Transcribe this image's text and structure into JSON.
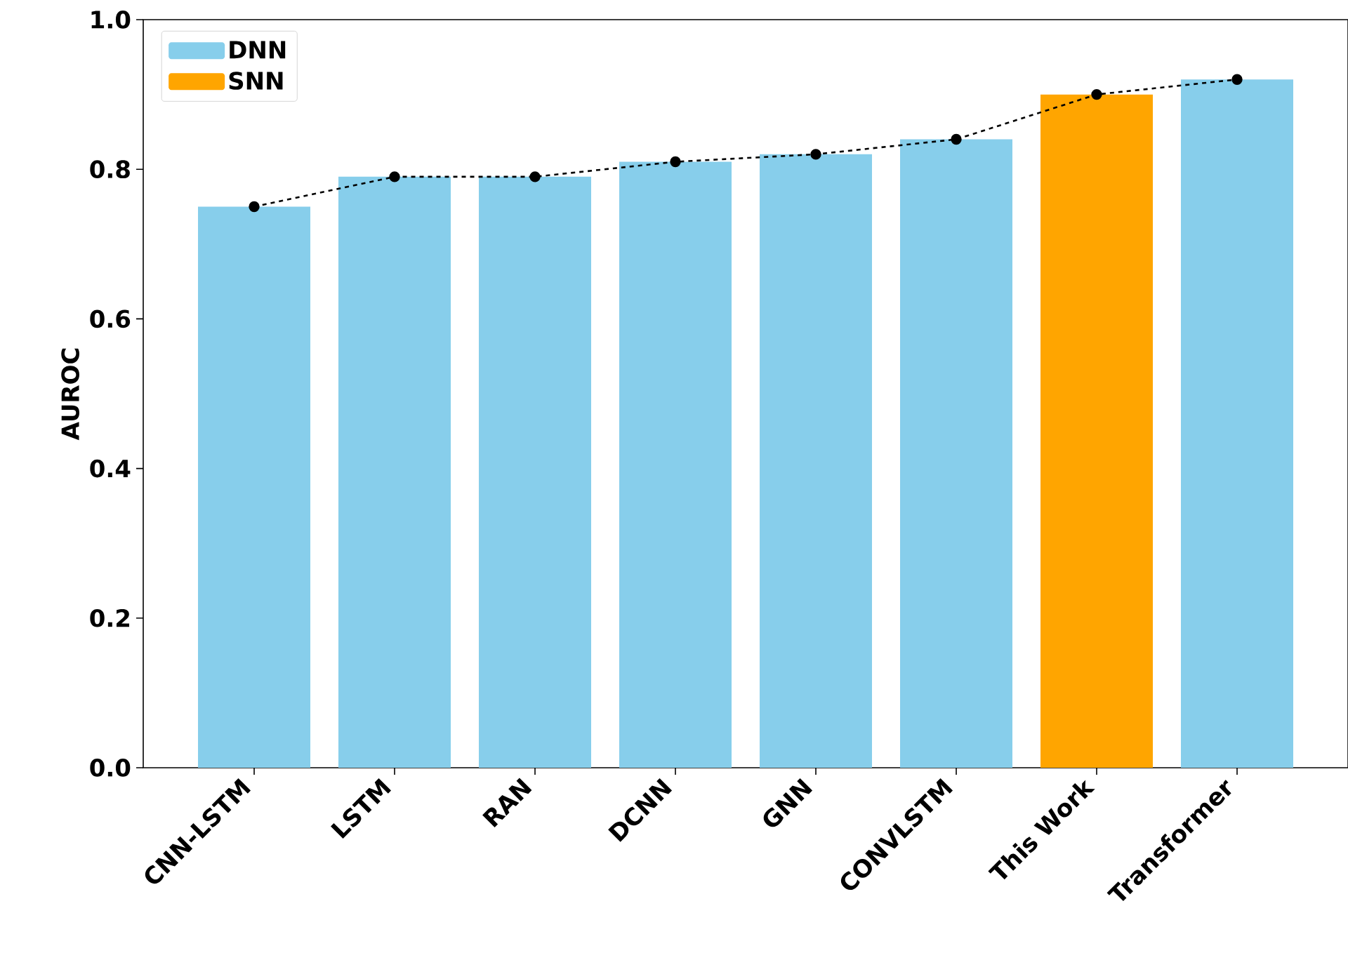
{
  "chart_data": {
    "type": "bar",
    "ylabel": "AUROC",
    "categories": [
      "CNN-LSTM",
      "LSTM",
      "RAN",
      "DCNN",
      "GNN",
      "CONVLSTM",
      "This Work",
      "Transformer"
    ],
    "series": [
      {
        "name": "DNN",
        "color": "#87ceeb",
        "values": [
          0.75,
          0.79,
          0.79,
          0.81,
          0.82,
          0.84,
          null,
          0.92
        ]
      },
      {
        "name": "SNN",
        "color": "#ffa500",
        "values": [
          null,
          null,
          null,
          null,
          null,
          null,
          0.9,
          null
        ]
      },
      {
        "type": "line",
        "color": "#000000",
        "marker": "circle",
        "line_style": "dashed",
        "values": [
          0.75,
          0.79,
          0.79,
          0.81,
          0.82,
          0.84,
          0.9,
          0.92
        ]
      }
    ],
    "ylim": [
      0,
      1.0
    ],
    "yticks": [
      {
        "value": 0,
        "label": "0.0"
      },
      0.2,
      0.4,
      0.6,
      0.8,
      {
        "value": 1,
        "label": "1.0"
      }
    ],
    "legend": "top left",
    "grid": false
  }
}
